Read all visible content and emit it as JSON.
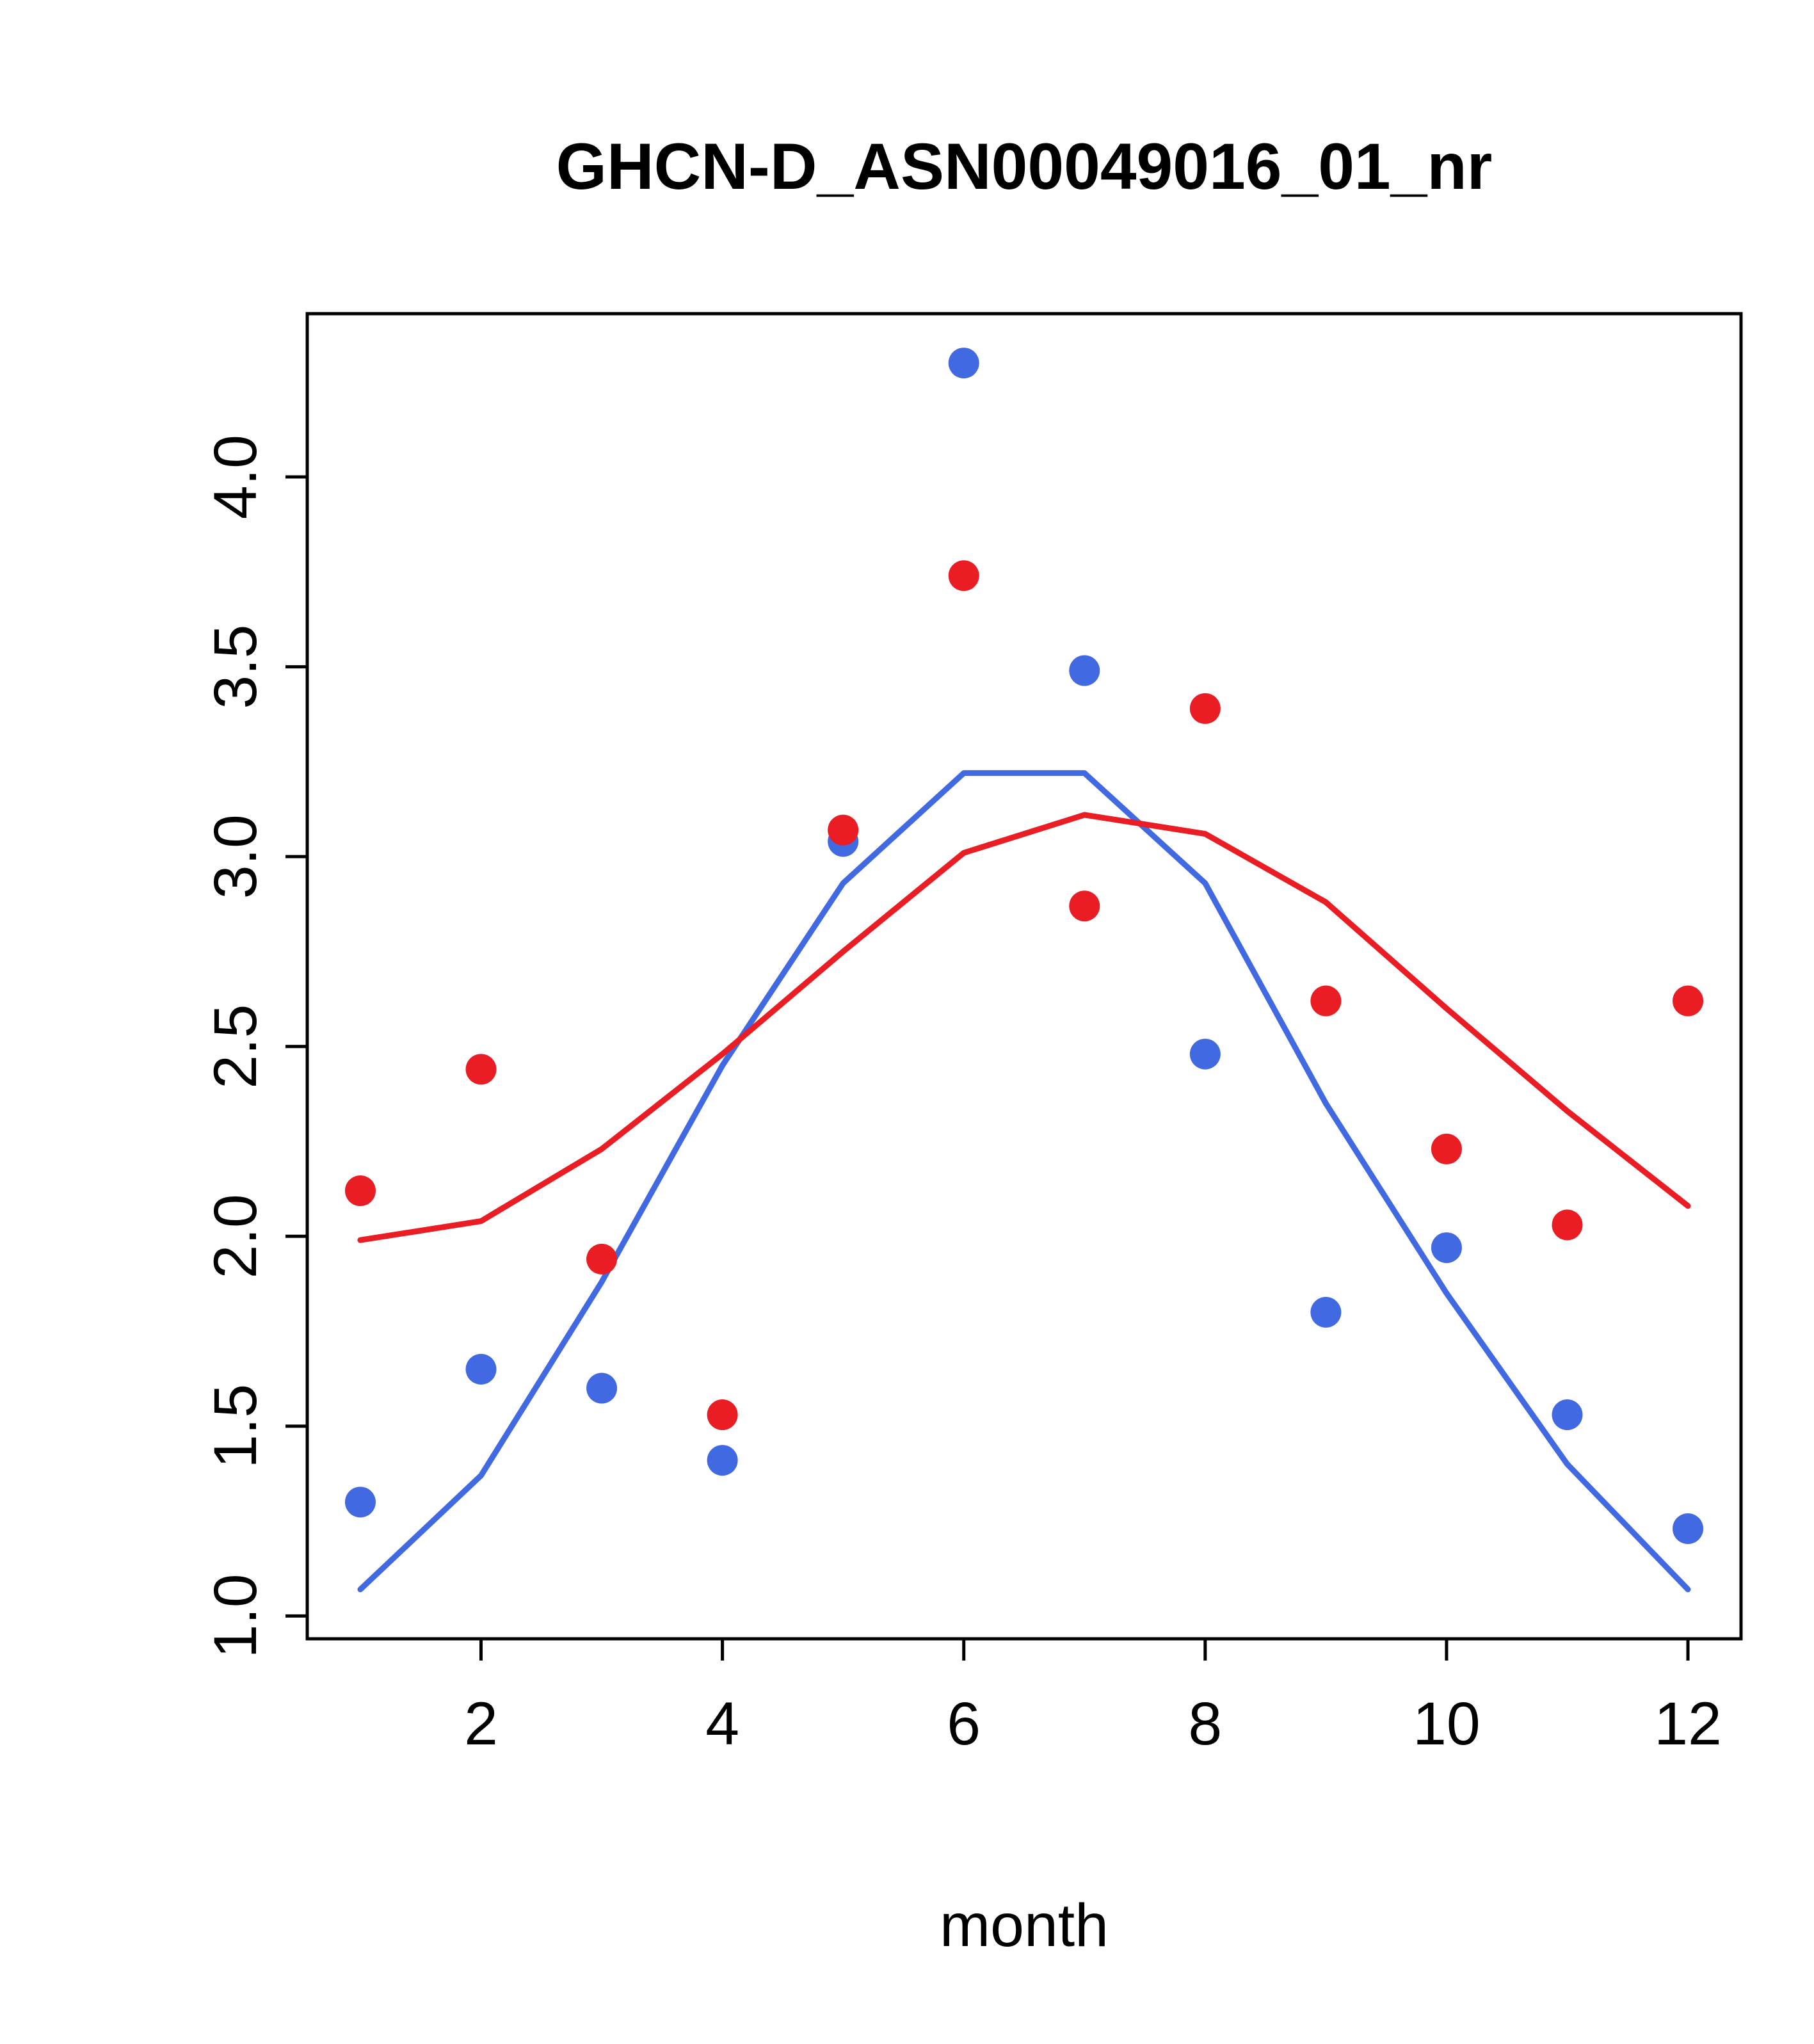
{
  "chart_data": {
    "type": "scatter",
    "title": "GHCN-D_ASN00049016_01_nr",
    "xlabel": "month",
    "ylabel": "",
    "x": [
      1,
      2,
      3,
      4,
      5,
      6,
      7,
      8,
      9,
      10,
      11,
      12
    ],
    "xlim": [
      0.56,
      12.44
    ],
    "ylim": [
      0.94,
      4.43
    ],
    "x_ticks": [
      2,
      4,
      6,
      8,
      10,
      12
    ],
    "x_tick_labels": [
      "2",
      "4",
      "6",
      "8",
      "10",
      "12"
    ],
    "y_ticks": [
      1.0,
      1.5,
      2.0,
      2.5,
      3.0,
      3.5,
      4.0
    ],
    "y_tick_labels": [
      "1.0",
      "1.5",
      "2.0",
      "2.5",
      "3.0",
      "3.5",
      "4.0"
    ],
    "grid": false,
    "legend": "none",
    "colors": {
      "blue": "#4169e1",
      "red": "#ea1c24"
    },
    "series": [
      {
        "name": "blue-points",
        "kind": "points",
        "color": "#4169e1",
        "values": [
          1.3,
          1.65,
          1.6,
          1.41,
          3.04,
          4.3,
          3.49,
          2.48,
          1.8,
          1.97,
          1.53,
          1.23
        ]
      },
      {
        "name": "red-points",
        "kind": "points",
        "color": "#ea1c24",
        "values": [
          2.12,
          2.44,
          1.94,
          1.53,
          3.07,
          3.74,
          2.87,
          3.39,
          2.62,
          2.23,
          2.03,
          2.62
        ]
      },
      {
        "name": "blue-line",
        "kind": "line",
        "color": "#4169e1",
        "values": [
          1.07,
          1.37,
          1.88,
          2.45,
          2.93,
          3.22,
          3.22,
          2.93,
          2.35,
          1.85,
          1.4,
          1.07
        ]
      },
      {
        "name": "red-line",
        "kind": "line",
        "color": "#ea1c24",
        "values": [
          1.99,
          2.04,
          2.23,
          2.48,
          2.75,
          3.01,
          3.11,
          3.06,
          2.88,
          2.6,
          2.33,
          2.08
        ]
      }
    ]
  }
}
